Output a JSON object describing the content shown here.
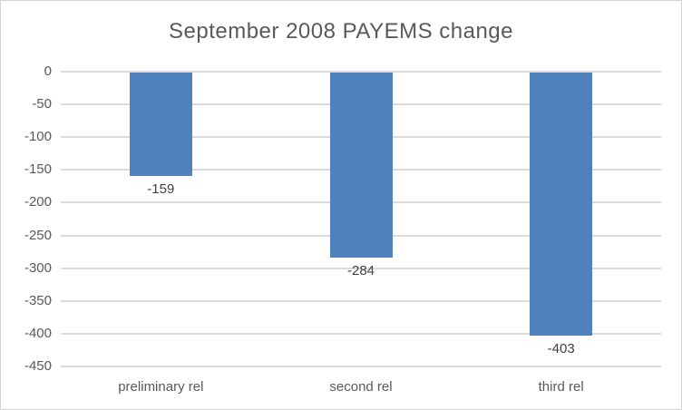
{
  "chart_data": {
    "type": "bar",
    "title": "September 2008 PAYEMS change",
    "categories": [
      "preliminary rel",
      "second rel",
      "third rel"
    ],
    "values": [
      -159,
      -284,
      -403
    ],
    "data_labels": [
      "-159",
      "-284",
      "-403"
    ],
    "xlabel": "",
    "ylabel": "",
    "ylim": [
      -450,
      0
    ],
    "yticks": [
      0,
      -50,
      -100,
      -150,
      -200,
      -250,
      -300,
      -350,
      -400,
      -450
    ],
    "grid": true,
    "legend": "none",
    "data_label_position": "outside-end",
    "colors": {
      "bar": "#4F81BD",
      "title": "#595959",
      "axis_labels": "#595959",
      "data_labels": "#404040",
      "gridlines": "#DBDBDB",
      "chart_border": "#D4D4D4",
      "background": "#FFFFFF"
    }
  }
}
